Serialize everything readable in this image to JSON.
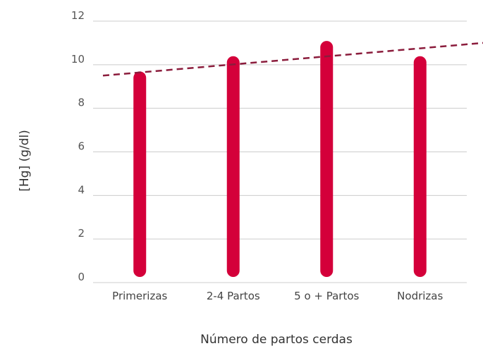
{
  "chart_data": {
    "type": "bar",
    "categories": [
      "Primerizas",
      "2-4 Partos",
      "5 o + Partos",
      "Nodrizas"
    ],
    "values": [
      9.4,
      10.1,
      10.8,
      10.1
    ],
    "xlabel": "Número de partos cerdas",
    "ylabel": "[Hg] (g/dl)",
    "ylim": [
      0,
      12
    ],
    "yticks": [
      0,
      2,
      4,
      6,
      8,
      10,
      12
    ],
    "grid": true,
    "legend": "none",
    "trendline": {
      "style": "dashed",
      "start": 9.5,
      "end": 11.0
    },
    "colors": {
      "bar": "#d4003a",
      "trend": "#8b1c3c",
      "grid": "#cccccc"
    }
  }
}
